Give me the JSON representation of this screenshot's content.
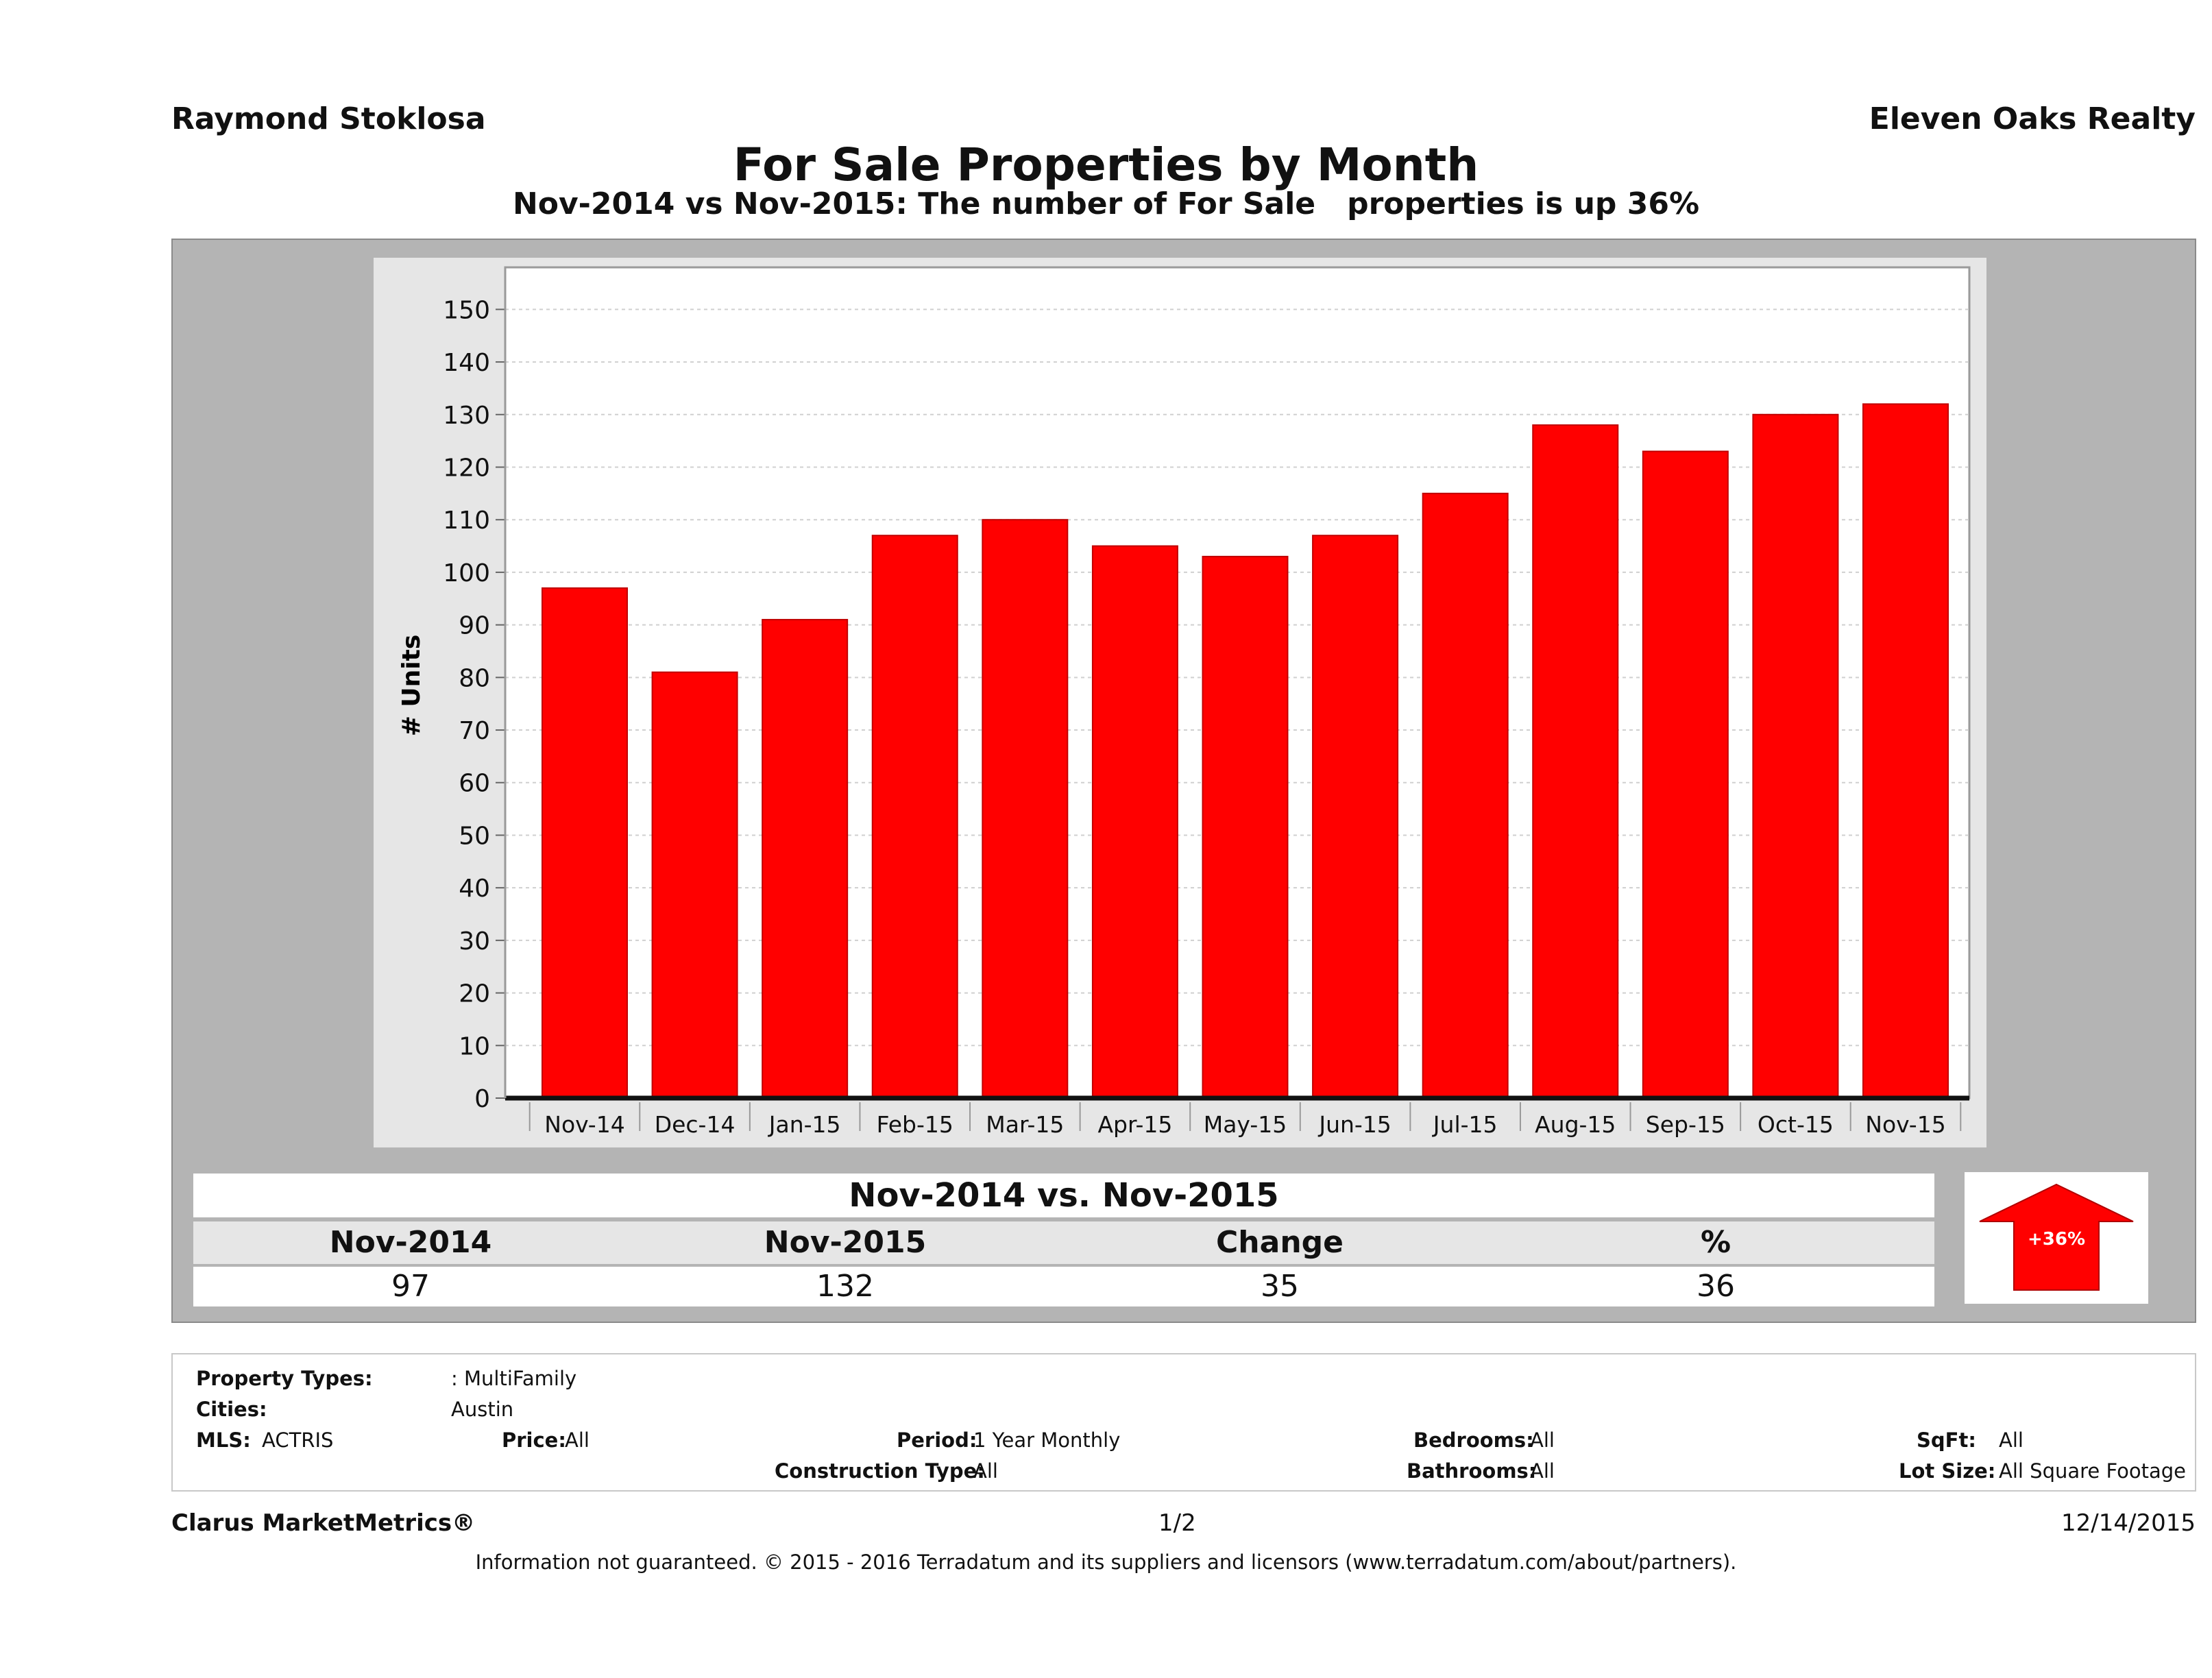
{
  "header": {
    "agent": "Raymond Stoklosa",
    "brokerage": "Eleven Oaks Realty"
  },
  "chart_data": {
    "type": "bar",
    "title": "For Sale Properties by Month",
    "subtitle": "Nov-2014 vs Nov-2015: The number of For Sale   properties is up 36%",
    "xlabel": "",
    "ylabel": "# Units",
    "ylim": [
      0,
      158
    ],
    "yticks": [
      0,
      10,
      20,
      30,
      40,
      50,
      60,
      70,
      80,
      90,
      100,
      110,
      120,
      130,
      140,
      150
    ],
    "grid": true,
    "categories": [
      "Nov-14",
      "Dec-14",
      "Jan-15",
      "Feb-15",
      "Mar-15",
      "Apr-15",
      "May-15",
      "Jun-15",
      "Jul-15",
      "Aug-15",
      "Sep-15",
      "Oct-15",
      "Nov-15"
    ],
    "values": [
      97,
      81,
      91,
      107,
      110,
      105,
      103,
      107,
      115,
      128,
      123,
      130,
      132
    ],
    "bar_color": "#ff0000"
  },
  "summary": {
    "title": "Nov-2014 vs. Nov-2015",
    "headers": [
      "Nov-2014",
      "Nov-2015",
      "Change",
      "%"
    ],
    "values": [
      "97",
      "132",
      "35",
      "36"
    ],
    "badge": "+36%",
    "badge_color": "#ff0000"
  },
  "filters": {
    "property_types_label": "Property Types:",
    "property_types_value": ": MultiFamily",
    "cities_label": "Cities:",
    "cities_value": "Austin",
    "mls_label": "MLS:",
    "mls_value": "ACTRIS",
    "price_label": "Price:",
    "price_value": "All",
    "period_label": "Period:",
    "period_value": "1 Year Monthly",
    "construction_label": "Construction Type:",
    "construction_value": "All",
    "bedrooms_label": "Bedrooms:",
    "bedrooms_value": "All",
    "bathrooms_label": "Bathrooms:",
    "bathrooms_value": "All",
    "sqft_label": "SqFt:",
    "sqft_value": "All",
    "lotsize_label": "Lot Size:",
    "lotsize_value": "All Square Footage"
  },
  "footer": {
    "brand": "Clarus MarketMetrics®",
    "page": "1/2",
    "date": "12/14/2015",
    "disclaimer": "Information not guaranteed. © 2015 - 2016 Terradatum and its suppliers and licensors (www.terradatum.com/about/partners)."
  }
}
